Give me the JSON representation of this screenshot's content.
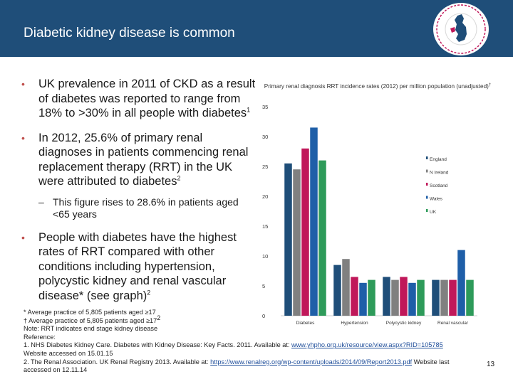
{
  "header": {
    "title": "Diabetic kidney disease is common",
    "bg_color": "#1f4e79"
  },
  "logo": {
    "icon": "renal-society-logo-icon"
  },
  "bullets": {
    "b1": "UK prevalence in 2011 of CKD as a result of diabetes was reported to range from 18% to >30% in all people with diabetes",
    "b1_ref": "1",
    "b2": "In 2012, 25.6% of primary renal diagnoses in patients commencing renal replacement therapy (RRT) in the UK were attributed to diabetes",
    "b2_ref": "2",
    "sub": "This figure rises to 28.6% in patients aged <65 years",
    "b3": "People with diabetes have the highest rates of RRT compared with other conditions including hypertension, polycystic kidney and renal vascular disease* (see graph)",
    "b3_ref": "2"
  },
  "footnotes": {
    "f1": "* Average practice of 5,805 patients aged ≥17",
    "f2": "† Average practice of 5,805 patients aged ≥17",
    "f2_ref": "2",
    "f3": "Note: RRT indicates end stage kidney disease",
    "f4": "Reference:",
    "f5a": "1. NHS Diabetes Kidney Care. Diabetes with Kidney Disease: Key Facts. 2011. Available at: ",
    "f5_link": "www.yhpho.org.uk/resource/view.aspx?RID=105785",
    "f5b": "Website accessed on 15.01.15",
    "f6a": "2. The Renal Association. UK Renal Registry 2013. Available at: ",
    "f6_link": "https://www.renalreg.org/wp-content/uploads/2014/09/Report2013.pdf",
    "f6b": " Website last",
    "f6c": "accessed on 12.11.14"
  },
  "page_number": "13",
  "chart_data": {
    "type": "bar",
    "title": "Primary renal diagnosis RRT incidence rates (2012) per million population (unadjusted)",
    "title_mark": "†",
    "categories": [
      "Diabetes",
      "Hypertension",
      "Polycystic kidney",
      "Renal vascular disease"
    ],
    "series": [
      {
        "name": "England",
        "color": "#1f4e79",
        "values": [
          25.5,
          8.5,
          6.5,
          6.0
        ]
      },
      {
        "name": "N Ireland",
        "color": "#808080",
        "values": [
          24.5,
          9.5,
          6.0,
          6.0
        ]
      },
      {
        "name": "Scotland",
        "color": "#c0185a",
        "values": [
          28.0,
          6.5,
          6.5,
          6.0
        ]
      },
      {
        "name": "Wales",
        "color": "#1f5fa8",
        "values": [
          31.5,
          5.5,
          5.5,
          11.0
        ]
      },
      {
        "name": "UK",
        "color": "#2e9b5a",
        "values": [
          26.0,
          6.0,
          6.0,
          6.0
        ]
      }
    ],
    "yticks": [
      0,
      5,
      10,
      15,
      20,
      25,
      30,
      35
    ],
    "ylim": [
      0,
      35
    ],
    "grid": false,
    "legend_position": "right"
  }
}
